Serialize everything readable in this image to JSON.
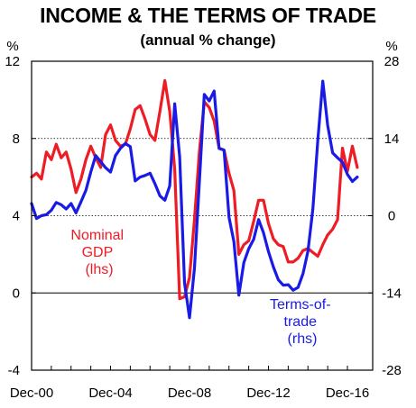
{
  "chart_data": {
    "type": "line",
    "title": "INCOME & THE TERMS OF TRADE",
    "subtitle": "(annual % change)",
    "left_unit": "%",
    "right_unit": "%",
    "x_ticks": [
      "Dec-00",
      "Dec-04",
      "Dec-08",
      "Dec-12",
      "Dec-16"
    ],
    "x_range": [
      2000.92,
      2018.2
    ],
    "y_left": {
      "range": [
        -4,
        12
      ],
      "ticks": [
        12,
        8,
        4,
        0,
        -4
      ]
    },
    "y_right": {
      "range": [
        -28,
        28
      ],
      "ticks": [
        28,
        14,
        0,
        -14,
        -28
      ]
    },
    "gridlines": [
      8,
      4
    ],
    "zero_line": 0,
    "series": [
      {
        "name": "Nominal GDP (lhs)",
        "label_lines": [
          "Nominal",
          "GDP",
          "(lhs)"
        ],
        "axis": "left",
        "color": "#ee1c25",
        "x": [
          2000.92,
          2001.17,
          2001.42,
          2001.67,
          2001.92,
          2002.17,
          2002.42,
          2002.67,
          2002.92,
          2003.17,
          2003.42,
          2003.67,
          2003.92,
          2004.17,
          2004.42,
          2004.67,
          2004.92,
          2005.17,
          2005.42,
          2005.67,
          2005.92,
          2006.17,
          2006.42,
          2006.67,
          2006.92,
          2007.17,
          2007.42,
          2007.67,
          2007.92,
          2008.17,
          2008.42,
          2008.67,
          2008.92,
          2009.17,
          2009.42,
          2009.67,
          2009.92,
          2010.17,
          2010.42,
          2010.67,
          2010.92,
          2011.17,
          2011.42,
          2011.67,
          2011.92,
          2012.17,
          2012.42,
          2012.67,
          2012.92,
          2013.17,
          2013.42,
          2013.67,
          2013.92,
          2014.17,
          2014.42,
          2014.67,
          2014.92,
          2015.17,
          2015.42,
          2015.67,
          2015.92,
          2016.17,
          2016.42,
          2016.67,
          2016.92,
          2017.17,
          2017.42
        ],
        "values": [
          6.0,
          6.2,
          5.9,
          7.3,
          6.9,
          7.7,
          7.0,
          7.3,
          6.4,
          5.2,
          5.9,
          6.9,
          7.6,
          7.0,
          6.5,
          8.2,
          8.7,
          7.9,
          7.6,
          7.7,
          8.5,
          9.5,
          9.7,
          9.0,
          8.2,
          7.9,
          9.4,
          11.0,
          9.4,
          6.4,
          -0.3,
          -0.2,
          0.8,
          3.8,
          7.3,
          9.9,
          9.6,
          8.9,
          7.5,
          7.4,
          6.2,
          5.3,
          2.0,
          2.5,
          2.7,
          3.7,
          4.8,
          4.8,
          3.6,
          2.8,
          2.5,
          2.4,
          1.6,
          1.6,
          1.8,
          2.2,
          2.3,
          2.1,
          1.9,
          2.5,
          3.0,
          3.3,
          3.8,
          7.5,
          6.3,
          7.6,
          6.5
        ]
      },
      {
        "name": "Terms-of-trade (rhs)",
        "label_lines": [
          "Terms-of-",
          "trade",
          "(rhs)"
        ],
        "axis": "right",
        "color": "#1a1ae6",
        "x": [
          2000.92,
          2001.17,
          2001.42,
          2001.67,
          2001.92,
          2002.17,
          2002.42,
          2002.67,
          2002.92,
          2003.17,
          2003.42,
          2003.67,
          2003.92,
          2004.17,
          2004.42,
          2004.67,
          2004.92,
          2005.17,
          2005.42,
          2005.67,
          2005.92,
          2006.17,
          2006.42,
          2006.67,
          2006.92,
          2007.17,
          2007.42,
          2007.67,
          2007.92,
          2008.17,
          2008.42,
          2008.67,
          2008.92,
          2009.17,
          2009.42,
          2009.67,
          2009.92,
          2010.17,
          2010.42,
          2010.67,
          2010.92,
          2011.17,
          2011.42,
          2011.67,
          2011.92,
          2012.17,
          2012.42,
          2012.67,
          2012.92,
          2013.17,
          2013.42,
          2013.67,
          2013.92,
          2014.17,
          2014.42,
          2014.67,
          2014.92,
          2015.17,
          2015.42,
          2015.67,
          2015.92,
          2016.17,
          2016.42,
          2016.67,
          2016.92,
          2017.17,
          2017.42
        ],
        "values": [
          2.2,
          -0.5,
          0.0,
          0.2,
          1.0,
          2.4,
          2.0,
          1.2,
          2.2,
          0.5,
          2.5,
          4.6,
          7.9,
          10.9,
          9.8,
          8.7,
          7.9,
          10.9,
          12.2,
          13.1,
          12.5,
          6.3,
          7.0,
          7.3,
          7.7,
          5.8,
          3.6,
          2.8,
          5.4,
          20.3,
          10.7,
          -12.2,
          -18.5,
          -9.5,
          6.0,
          22.0,
          20.8,
          22.6,
          12.2,
          11.9,
          -0.3,
          -4.7,
          -14.4,
          -8.5,
          -6.0,
          -4.3,
          -0.7,
          -3.1,
          -6.5,
          -9.3,
          -11.6,
          -12.6,
          -12.5,
          -13.5,
          -13.0,
          -10.5,
          -6.4,
          1.2,
          13.7,
          24.4,
          16.4,
          11.4,
          10.5,
          9.7,
          7.5,
          6.2,
          7.0
        ]
      }
    ]
  }
}
